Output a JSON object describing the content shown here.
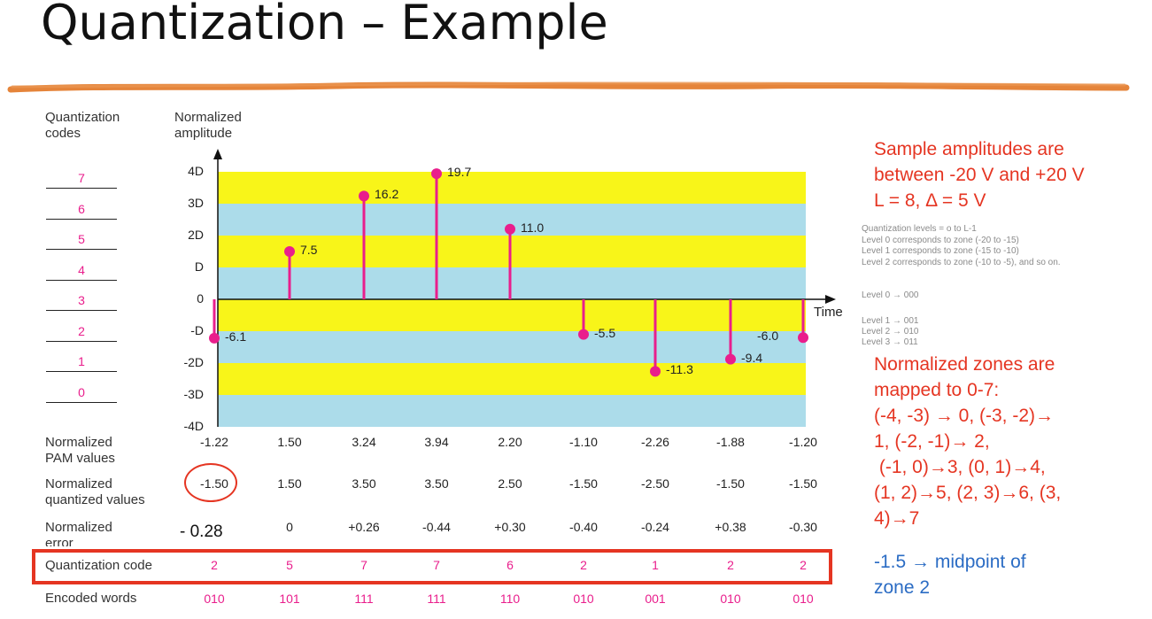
{
  "title": "Quantization – Example",
  "headers": {
    "quantization_codes": [
      "Quantization",
      "codes"
    ],
    "normalized_amplitude": [
      "Normalized",
      "amplitude"
    ]
  },
  "code_levels": [
    "7",
    "6",
    "5",
    "4",
    "3",
    "2",
    "1",
    "0"
  ],
  "y_ticks": [
    "4D",
    "3D",
    "2D",
    "D",
    "0",
    "-D",
    "-2D",
    "-3D",
    "-4D"
  ],
  "time_label": "Time",
  "chart_data": {
    "type": "stem",
    "y_unit": "D",
    "ylim": [
      -4,
      4
    ],
    "bands": [
      "yellow",
      "blue",
      "yellow",
      "blue",
      "yellow",
      "blue",
      "yellow",
      "blue"
    ],
    "band_colors": {
      "yellow": "#f8f519",
      "blue": "#acdcea"
    },
    "stem_color": "#e91e8c",
    "samples": [
      {
        "label": "-6.1",
        "value": -1.22
      },
      {
        "label": "7.5",
        "value": 1.5
      },
      {
        "label": "16.2",
        "value": 3.24
      },
      {
        "label": "19.7",
        "value": 3.94
      },
      {
        "label": "11.0",
        "value": 2.2
      },
      {
        "label": "-5.5",
        "value": -1.1
      },
      {
        "label": "-11.3",
        "value": -2.26
      },
      {
        "label": "-9.4",
        "value": -1.88
      },
      {
        "label": "-6.0",
        "value": -1.2
      }
    ]
  },
  "rows": {
    "pam": {
      "label": [
        "Normalized",
        "PAM values"
      ],
      "values": [
        "-1.22",
        "1.50",
        "3.24",
        "3.94",
        "2.20",
        "-1.10",
        "-2.26",
        "-1.88",
        "-1.20"
      ]
    },
    "quantized": {
      "label": [
        "Normalized",
        "quantized values"
      ],
      "values": [
        "-1.50",
        "1.50",
        "3.50",
        "3.50",
        "2.50",
        "-1.50",
        "-2.50",
        "-1.50",
        "-1.50"
      ]
    },
    "error": {
      "label": [
        "Normalized",
        "error"
      ],
      "first_value": "- 0.28",
      "values": [
        "",
        "0",
        "+0.26",
        "-0.44",
        "+0.30",
        "-0.40",
        "-0.24",
        "+0.38",
        "-0.30"
      ]
    },
    "code": {
      "label": "Quantization code",
      "values": [
        "2",
        "5",
        "7",
        "7",
        "6",
        "2",
        "1",
        "2",
        "2"
      ]
    },
    "encoded": {
      "label": "Encoded words",
      "values": [
        "010",
        "101",
        "111",
        "111",
        "110",
        "010",
        "001",
        "010",
        "010"
      ]
    }
  },
  "notes": {
    "red_top": [
      "Sample amplitudes are",
      "between -20 V and +20 V",
      "L = 8, Δ = 5 V"
    ],
    "gray_levels": [
      "Quantization levels = o to L-1",
      "Level 0 corresponds to zone (-20 to -15)",
      "Level 1 corresponds to zone (-15 to -10)",
      "Level 2 corresponds to zone (-10 to -5), and so on."
    ],
    "gray_codes": [
      "Level 0 → 000",
      "Level 1 → 001",
      "Level 2 → 010",
      "Level 3 → 011"
    ],
    "red_bottom": [
      "Normalized zones are",
      "mapped to 0-7:",
      "(-4, -3) → 0, (-3, -2)→",
      "1, (-2, -1)→ 2,",
      " (-1, 0)→3, (0, 1)→4,",
      "(1, 2)→5, (2, 3)→6, (3,",
      "4)→7"
    ],
    "blue_bottom": [
      "-1.5 → midpoint of",
      "zone 2"
    ]
  }
}
